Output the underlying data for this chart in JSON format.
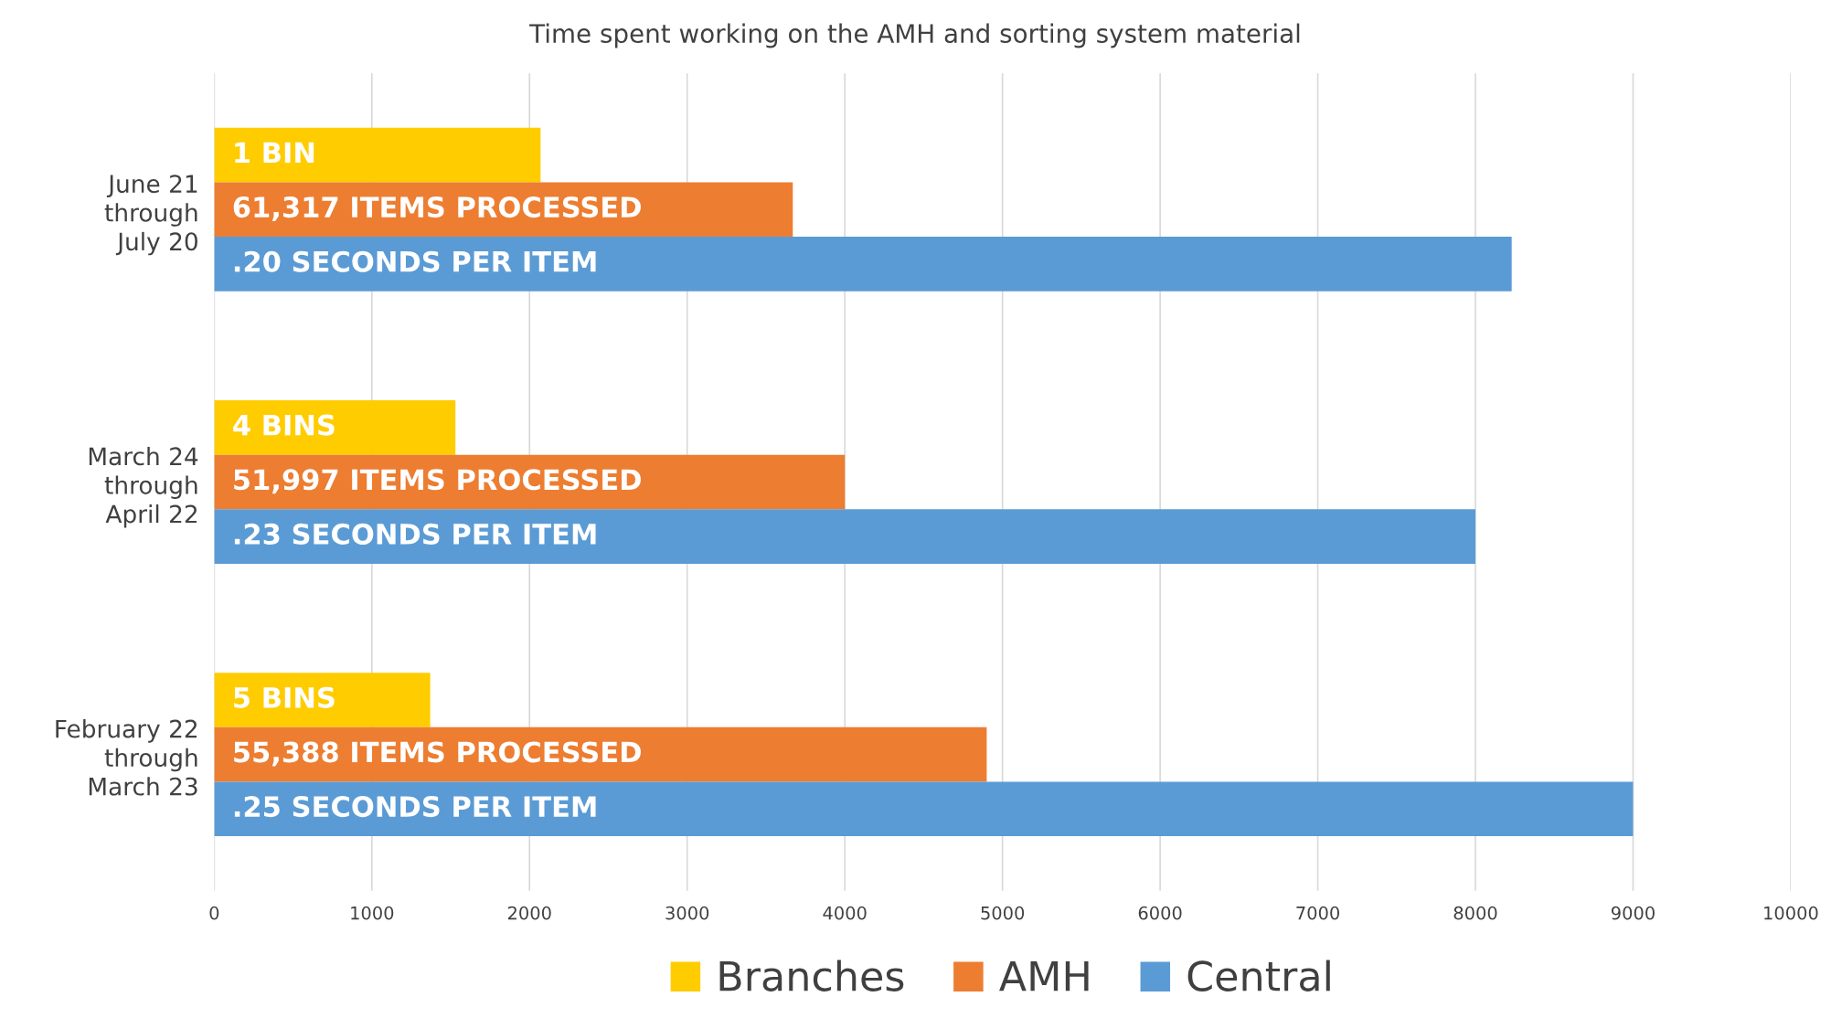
{
  "chart_data": {
    "type": "bar",
    "orientation": "horizontal",
    "title": "Time spent working on the AMH and sorting system material",
    "categories": [
      "June 21\nthrough\nJuly 20",
      "March 24\nthrough\nApril 22",
      "February 22\nthrough\nMarch 23"
    ],
    "series": [
      {
        "name": "Branches",
        "color": "#ffcc00",
        "values": [
          2070,
          1530,
          1370
        ]
      },
      {
        "name": "AMH",
        "color": "#ed7d31",
        "values": [
          3670,
          4000,
          4900
        ]
      },
      {
        "name": "Central",
        "color": "#5b9bd5",
        "values": [
          8230,
          8000,
          9000
        ]
      }
    ],
    "annotations": [
      "1 BIN",
      "61,317 ITEMS PROCESSED",
      ".20 SECONDS PER ITEM",
      "4 BINS",
      "51,997 ITEMS PROCESSED",
      ".23 SECONDS PER ITEM",
      "5 BINS",
      "55,388 ITEMS PROCESSED",
      ".25 SECONDS PER ITEM"
    ],
    "xlim": [
      0,
      10000
    ],
    "xticks": [
      0,
      1000,
      2000,
      3000,
      4000,
      5000,
      6000,
      7000,
      8000,
      9000,
      10000
    ],
    "grid": "x",
    "legend": "bottom"
  }
}
